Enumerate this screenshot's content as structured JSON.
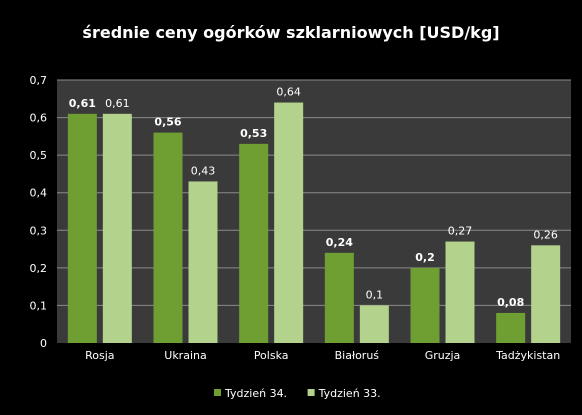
{
  "chart_data": {
    "type": "bar",
    "title": "średnie ceny ogórków szklarniowych [USD/kg]",
    "xlabel": "",
    "ylabel": "",
    "ylim": [
      0,
      0.7
    ],
    "yticks": [
      "0",
      "0,1",
      "0,2",
      "0,3",
      "0,4",
      "0,5",
      "0,6",
      "0,7"
    ],
    "grid": true,
    "legend_position": "bottom",
    "categories": [
      "Rosja",
      "Ukraina",
      "Polska",
      "Białoruś",
      "Gruzja",
      "Tadżykistan"
    ],
    "series": [
      {
        "name": "Tydzień 34.",
        "values": [
          0.61,
          0.56,
          0.53,
          0.24,
          0.2,
          0.08
        ],
        "labels": [
          "0,61",
          "0,56",
          "0,53",
          "0,24",
          "0,2",
          "0,08"
        ],
        "color": "#6f9e32"
      },
      {
        "name": "Tydzień 33.",
        "values": [
          0.61,
          0.43,
          0.64,
          0.1,
          0.27,
          0.26
        ],
        "labels": [
          "0,61",
          "0,43",
          "0,64",
          "0,1",
          "0,27",
          "0,26"
        ],
        "color": "#b3d38c"
      }
    ]
  },
  "colors": {
    "background": "#000000",
    "plot_area": "#3a3a3a",
    "gridline": "#8a8a8a",
    "text": "#ffffff"
  }
}
